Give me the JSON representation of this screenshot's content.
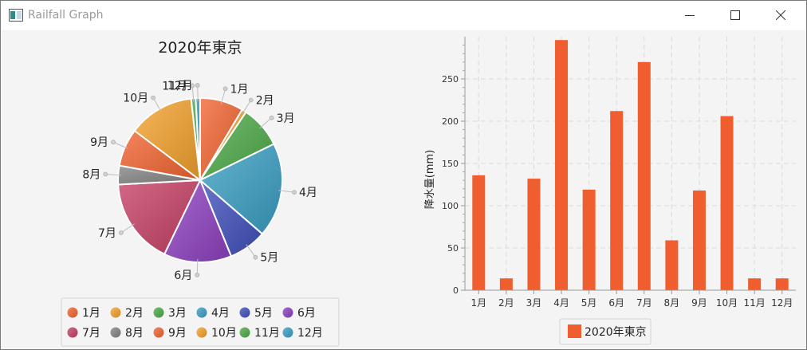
{
  "window": {
    "title": "Railfall Graph",
    "icon": "app-window-icon",
    "controls": {
      "minimize": "minimize-icon",
      "maximize": "maximize-icon",
      "close": "close-icon"
    }
  },
  "chart_data": [
    {
      "type": "pie",
      "title": "2020年東京",
      "categories": [
        "1月",
        "2月",
        "3月",
        "4月",
        "5月",
        "6月",
        "7月",
        "8月",
        "9月",
        "10月",
        "11月",
        "12月"
      ],
      "values": [
        136,
        14,
        132,
        296,
        119,
        212,
        270,
        59,
        118,
        206,
        14,
        14
      ],
      "colors": [
        "#f26430",
        "#f3a12b",
        "#4caa48",
        "#3a9fc3",
        "#3f4fbb",
        "#8d40c0",
        "#c53f64",
        "#828282",
        "#f26430",
        "#f3a12b",
        "#4caa48",
        "#3a9fc3"
      ],
      "legend": "bottom"
    },
    {
      "type": "bar",
      "categories": [
        "1月",
        "2月",
        "3月",
        "4月",
        "5月",
        "6月",
        "7月",
        "8月",
        "9月",
        "10月",
        "11月",
        "12月"
      ],
      "series": [
        {
          "name": "2020年東京",
          "values": [
            136,
            14,
            132,
            296,
            119,
            212,
            270,
            59,
            118,
            206,
            14,
            14
          ]
        }
      ],
      "ylabel": "降水量(mm)",
      "ylim": [
        0,
        300
      ],
      "yticks": [
        0,
        50,
        100,
        150,
        200,
        250
      ],
      "grid": true,
      "legend": "bottom",
      "bar_color": "#f05e2f"
    }
  ]
}
